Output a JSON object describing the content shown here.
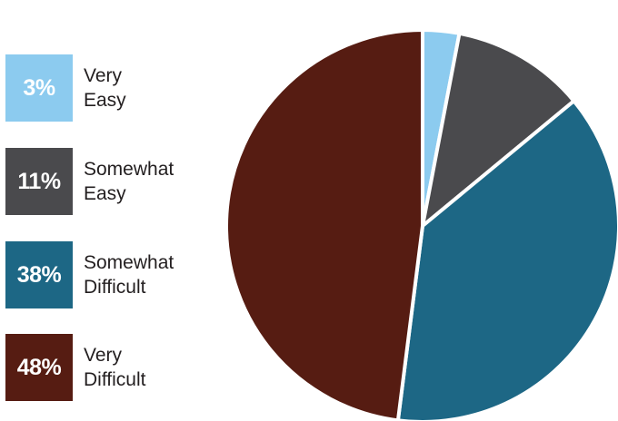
{
  "chart_data": {
    "type": "pie",
    "title": "",
    "slices": [
      {
        "label": "Very\nEasy",
        "value": 3,
        "value_label": "3%",
        "color": "#8ccbef"
      },
      {
        "label": "Somewhat\nEasy",
        "value": 11,
        "value_label": "11%",
        "color": "#4a4a4d"
      },
      {
        "label": "Somewhat\nDifficult",
        "value": 38,
        "value_label": "38%",
        "color": "#1d6785"
      },
      {
        "label": "Very\nDifficult",
        "value": 48,
        "value_label": "48%",
        "color": "#561c12"
      }
    ],
    "start": "12 o'clock",
    "direction": "clockwise",
    "legend_position": "left"
  }
}
